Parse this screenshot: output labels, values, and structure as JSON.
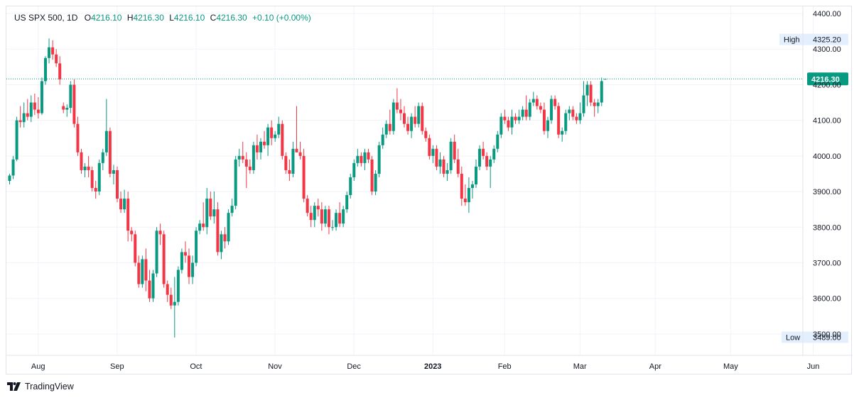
{
  "legend": {
    "symbol": "US SPX 500, 1D",
    "o_label": "O",
    "o_value": "4216.10",
    "h_label": "H",
    "h_value": "4216.30",
    "l_label": "L",
    "l_value": "4216.10",
    "c_label": "C",
    "c_value": "4216.30",
    "change": "+0.10 (+0.00%)"
  },
  "footer": {
    "brand": "TradingView"
  },
  "colors": {
    "up": "#089981",
    "down": "#f23645",
    "grid": "#f0f3fa",
    "badge_bg": "#e3effd",
    "price_line": "#089981"
  },
  "chart_data": {
    "type": "candlestick",
    "y_ticks": [
      "4400.00",
      "4300.00",
      "4200.00",
      "4100.00",
      "4000.00",
      "3900.00",
      "3800.00",
      "3700.00",
      "3600.00",
      "3500.00"
    ],
    "y_tick_values": [
      4400,
      4300,
      4200,
      4100,
      4000,
      3900,
      3800,
      3700,
      3600,
      3500
    ],
    "ylim": [
      3440,
      4420
    ],
    "x_labels": [
      {
        "label": "Aug",
        "bold": false
      },
      {
        "label": "Sep",
        "bold": false
      },
      {
        "label": "Oct",
        "bold": false
      },
      {
        "label": "Nov",
        "bold": false
      },
      {
        "label": "Dec",
        "bold": false
      },
      {
        "label": "2023",
        "bold": true
      },
      {
        "label": "Feb",
        "bold": false
      },
      {
        "label": "Mar",
        "bold": false
      },
      {
        "label": "Apr",
        "bold": false
      },
      {
        "label": "May",
        "bold": false
      },
      {
        "label": "Jun",
        "bold": false
      }
    ],
    "x_label_index": [
      4,
      26,
      48,
      70,
      92,
      114,
      134,
      155,
      176,
      197,
      220
    ],
    "last_price": "4216.30",
    "last_price_value": 4216.3,
    "high": {
      "label": "High",
      "value": "4325.20",
      "v": 4325.2
    },
    "low": {
      "label": "Low",
      "value": "3489.00",
      "v": 3489.0
    },
    "grid": true,
    "candles": [
      [
        3930,
        3950,
        3920,
        3945
      ],
      [
        3945,
        4000,
        3935,
        3990
      ],
      [
        3990,
        4110,
        3985,
        4100
      ],
      [
        4100,
        4140,
        4080,
        4095
      ],
      [
        4095,
        4150,
        4080,
        4120
      ],
      [
        4120,
        4160,
        4100,
        4110
      ],
      [
        4110,
        4170,
        4095,
        4150
      ],
      [
        4150,
        4175,
        4115,
        4130
      ],
      [
        4130,
        4165,
        4105,
        4120
      ],
      [
        4120,
        4220,
        4115,
        4210
      ],
      [
        4210,
        4280,
        4200,
        4275
      ],
      [
        4275,
        4330,
        4260,
        4305
      ],
      [
        4305,
        4325,
        4270,
        4285
      ],
      [
        4285,
        4300,
        4250,
        4260
      ],
      [
        4260,
        4280,
        4200,
        4215
      ],
      [
        4140,
        4150,
        4120,
        4130
      ],
      [
        4130,
        4145,
        4110,
        4135
      ],
      [
        4135,
        4210,
        4120,
        4200
      ],
      [
        4200,
        4215,
        4080,
        4090
      ],
      [
        4090,
        4110,
        4000,
        4010
      ],
      [
        4010,
        4020,
        3950,
        3960
      ],
      [
        3960,
        3980,
        3940,
        3970
      ],
      [
        3970,
        4000,
        3940,
        3960
      ],
      [
        3960,
        3970,
        3900,
        3910
      ],
      [
        3910,
        3930,
        3880,
        3900
      ],
      [
        3900,
        3990,
        3890,
        3980
      ],
      [
        3980,
        4020,
        3960,
        4010
      ],
      [
        4010,
        4160,
        4000,
        4070
      ],
      [
        4070,
        4080,
        3940,
        3950
      ],
      [
        3950,
        3975,
        3920,
        3960
      ],
      [
        3960,
        3970,
        3870,
        3880
      ],
      [
        3880,
        3900,
        3840,
        3850
      ],
      [
        3850,
        3905,
        3840,
        3880
      ],
      [
        3880,
        3900,
        3760,
        3790
      ],
      [
        3790,
        3800,
        3760,
        3780
      ],
      [
        3780,
        3790,
        3690,
        3700
      ],
      [
        3700,
        3720,
        3630,
        3640
      ],
      [
        3640,
        3720,
        3630,
        3710
      ],
      [
        3710,
        3740,
        3620,
        3650
      ],
      [
        3650,
        3680,
        3590,
        3600
      ],
      [
        3600,
        3680,
        3590,
        3670
      ],
      [
        3670,
        3800,
        3660,
        3790
      ],
      [
        3790,
        3810,
        3750,
        3780
      ],
      [
        3780,
        3790,
        3630,
        3640
      ],
      [
        3640,
        3650,
        3590,
        3610
      ],
      [
        3610,
        3630,
        3570,
        3580
      ],
      [
        3580,
        3660,
        3490,
        3590
      ],
      [
        3590,
        3690,
        3580,
        3680
      ],
      [
        3680,
        3740,
        3670,
        3730
      ],
      [
        3730,
        3760,
        3700,
        3720
      ],
      [
        3720,
        3740,
        3640,
        3660
      ],
      [
        3660,
        3720,
        3640,
        3700
      ],
      [
        3700,
        3800,
        3690,
        3790
      ],
      [
        3790,
        3820,
        3780,
        3810
      ],
      [
        3810,
        3870,
        3790,
        3800
      ],
      [
        3800,
        3910,
        3780,
        3880
      ],
      [
        3880,
        3900,
        3820,
        3830
      ],
      [
        3830,
        3900,
        3810,
        3850
      ],
      [
        3850,
        3870,
        3720,
        3730
      ],
      [
        3730,
        3790,
        3710,
        3780
      ],
      [
        3780,
        3800,
        3740,
        3760
      ],
      [
        3760,
        3850,
        3750,
        3840
      ],
      [
        3840,
        3880,
        3830,
        3860
      ],
      [
        3860,
        4000,
        3850,
        3990
      ],
      [
        3990,
        4020,
        3970,
        4000
      ],
      [
        4000,
        4040,
        3980,
        3990
      ],
      [
        3990,
        4010,
        3910,
        3970
      ],
      [
        3970,
        3990,
        3950,
        3960
      ],
      [
        3960,
        4040,
        3950,
        4030
      ],
      [
        4030,
        4060,
        3990,
        4010
      ],
      [
        4010,
        4050,
        3990,
        4040
      ],
      [
        4040,
        4070,
        4020,
        4030
      ],
      [
        4030,
        4090,
        4000,
        4080
      ],
      [
        4080,
        4100,
        4030,
        4050
      ],
      [
        4050,
        4070,
        4040,
        4060
      ],
      [
        4060,
        4110,
        4050,
        4090
      ],
      [
        4090,
        4100,
        3990,
        4000
      ],
      [
        4000,
        4010,
        3950,
        3960
      ],
      [
        3960,
        3990,
        3930,
        3950
      ],
      [
        3950,
        4040,
        3940,
        4020
      ],
      [
        4020,
        4140,
        4010,
        4010
      ],
      [
        4010,
        4040,
        3990,
        4000
      ],
      [
        4000,
        4020,
        3870,
        3880
      ],
      [
        3880,
        3890,
        3830,
        3840
      ],
      [
        3840,
        3860,
        3800,
        3820
      ],
      [
        3820,
        3870,
        3800,
        3860
      ],
      [
        3860,
        3880,
        3830,
        3850
      ],
      [
        3850,
        3870,
        3790,
        3810
      ],
      [
        3810,
        3860,
        3800,
        3850
      ],
      [
        3850,
        3860,
        3780,
        3800
      ],
      [
        3800,
        3820,
        3790,
        3800
      ],
      [
        3800,
        3850,
        3790,
        3840
      ],
      [
        3840,
        3870,
        3800,
        3810
      ],
      [
        3810,
        3860,
        3800,
        3850
      ],
      [
        3850,
        3900,
        3840,
        3890
      ],
      [
        3890,
        3950,
        3880,
        3940
      ],
      [
        3940,
        3990,
        3930,
        3980
      ],
      [
        3980,
        4020,
        3970,
        4000
      ],
      [
        4000,
        4010,
        3970,
        3980
      ],
      [
        3980,
        4020,
        3960,
        4010
      ],
      [
        4010,
        4020,
        3980,
        3990
      ],
      [
        3990,
        4000,
        3890,
        3900
      ],
      [
        3900,
        3960,
        3890,
        3950
      ],
      [
        3950,
        4040,
        3940,
        4030
      ],
      [
        4030,
        4080,
        4020,
        4060
      ],
      [
        4060,
        4100,
        4050,
        4090
      ],
      [
        4090,
        4130,
        4060,
        4070
      ],
      [
        4070,
        4160,
        4060,
        4150
      ],
      [
        4150,
        4190,
        4120,
        4130
      ],
      [
        4130,
        4160,
        4100,
        4120
      ],
      [
        4120,
        4140,
        4080,
        4090
      ],
      [
        4090,
        4110,
        4060,
        4070
      ],
      [
        4070,
        4120,
        4050,
        4110
      ],
      [
        4110,
        4140,
        4080,
        4090
      ],
      [
        4090,
        4150,
        4080,
        4140
      ],
      [
        4140,
        4150,
        4060,
        4070
      ],
      [
        4070,
        4080,
        4040,
        4050
      ],
      [
        4050,
        4060,
        3990,
        4000
      ],
      [
        4000,
        4030,
        3980,
        4020
      ],
      [
        4020,
        4030,
        3960,
        3970
      ],
      [
        3970,
        4010,
        3950,
        3990
      ],
      [
        3990,
        4000,
        3940,
        3950
      ],
      [
        3950,
        3980,
        3930,
        3960
      ],
      [
        3960,
        4050,
        3950,
        4040
      ],
      [
        4040,
        4060,
        3980,
        3990
      ],
      [
        3990,
        4020,
        3940,
        3950
      ],
      [
        3950,
        3970,
        3860,
        3880
      ],
      [
        3880,
        3920,
        3860,
        3870
      ],
      [
        3870,
        3940,
        3840,
        3910
      ],
      [
        3910,
        3930,
        3880,
        3920
      ],
      [
        3920,
        3990,
        3910,
        3970
      ],
      [
        3970,
        4030,
        3960,
        4020
      ],
      [
        4020,
        4040,
        3990,
        4000
      ],
      [
        4000,
        4010,
        3960,
        3970
      ],
      [
        3970,
        4000,
        3910,
        3990
      ],
      [
        3990,
        4030,
        3980,
        4020
      ],
      [
        4020,
        4070,
        4010,
        4060
      ],
      [
        4060,
        4120,
        4050,
        4110
      ],
      [
        4110,
        4130,
        4090,
        4100
      ],
      [
        4100,
        4110,
        4070,
        4080
      ],
      [
        4080,
        4130,
        4060,
        4110
      ],
      [
        4110,
        4120,
        4090,
        4100
      ],
      [
        4100,
        4130,
        4090,
        4110
      ],
      [
        4110,
        4140,
        4100,
        4130
      ],
      [
        4130,
        4170,
        4100,
        4110
      ],
      [
        4110,
        4160,
        4100,
        4150
      ],
      [
        4150,
        4180,
        4140,
        4160
      ],
      [
        4160,
        4170,
        4130,
        4140
      ],
      [
        4140,
        4150,
        4120,
        4130
      ],
      [
        4130,
        4150,
        4060,
        4070
      ],
      [
        4070,
        4110,
        4050,
        4100
      ],
      [
        4100,
        4170,
        4090,
        4160
      ],
      [
        4160,
        4170,
        4130,
        4140
      ],
      [
        4140,
        4150,
        4050,
        4060
      ],
      [
        4060,
        4080,
        4040,
        4070
      ],
      [
        4070,
        4130,
        4060,
        4120
      ],
      [
        4120,
        4140,
        4100,
        4130
      ],
      [
        4130,
        4140,
        4100,
        4110
      ],
      [
        4110,
        4120,
        4090,
        4100
      ],
      [
        4100,
        4150,
        4090,
        4120
      ],
      [
        4120,
        4210,
        4110,
        4170
      ],
      [
        4170,
        4210,
        4140,
        4200
      ],
      [
        4200,
        4210,
        4140,
        4150
      ],
      [
        4150,
        4160,
        4110,
        4140
      ],
      [
        4140,
        4160,
        4120,
        4150
      ],
      [
        4150,
        4220,
        4140,
        4210
      ],
      [
        4216.1,
        4216.3,
        4216.1,
        4216.3
      ]
    ]
  }
}
